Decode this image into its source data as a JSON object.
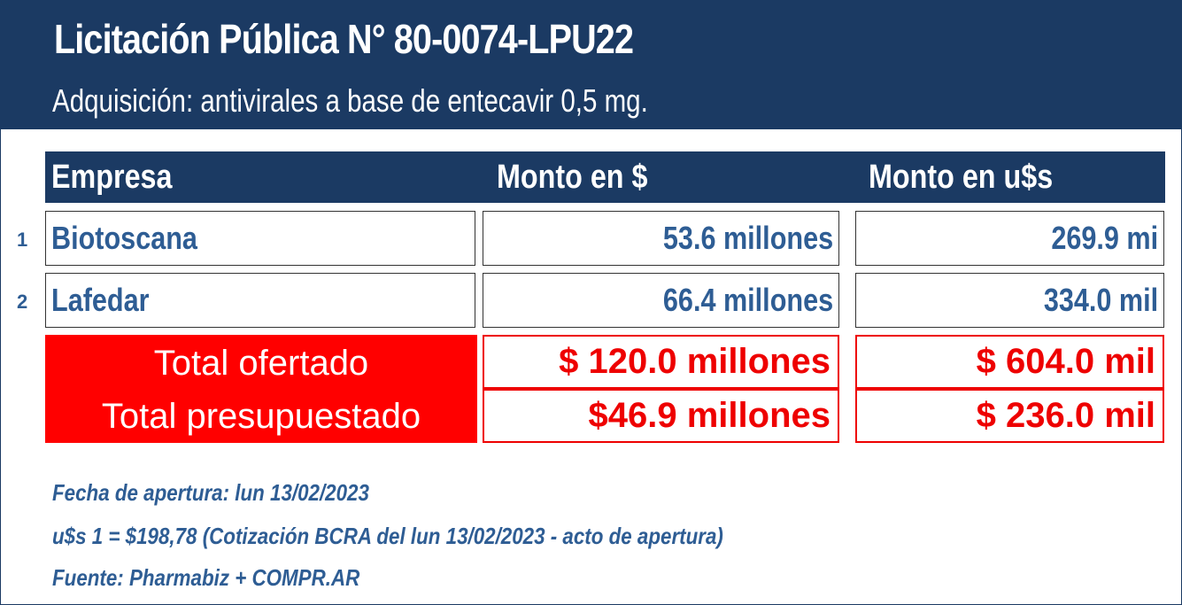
{
  "header": {
    "title": "Licitación Pública N° 80-0074-LPU22",
    "subtitle": "Adquisición: antivirales a base de entecavir 0,5 mg."
  },
  "table": {
    "columns": [
      "Empresa",
      "Monto en $",
      "Monto en u$s"
    ],
    "rows": [
      {
        "num": "1",
        "empresa": "Biotoscana",
        "monto_pesos": "53.6 millones",
        "monto_usd": "269.9 mi"
      },
      {
        "num": "2",
        "empresa": "Lafedar",
        "monto_pesos": "66.4 millones",
        "monto_usd": "334.0 mil"
      }
    ],
    "totals": [
      {
        "label": "Total ofertado",
        "monto_pesos": "$ 120.0 millones",
        "monto_usd": "$ 604.0 mil"
      },
      {
        "label": "Total presupuestado",
        "monto_pesos": "$46.9 millones",
        "monto_usd": "$ 236.0 mil"
      }
    ]
  },
  "notes": {
    "fecha": "Fecha de apertura: lun 13/02/2023",
    "cotizacion": "u$s 1 = $198,78 (Cotización BCRA del lun 13/02/2023 - acto de apertura)",
    "fuente": "Fuente: Pharmabiz + COMPR.AR"
  },
  "colors": {
    "navy": "#1b3a63",
    "text_blue": "#2e5d94",
    "red": "#ff0000"
  }
}
